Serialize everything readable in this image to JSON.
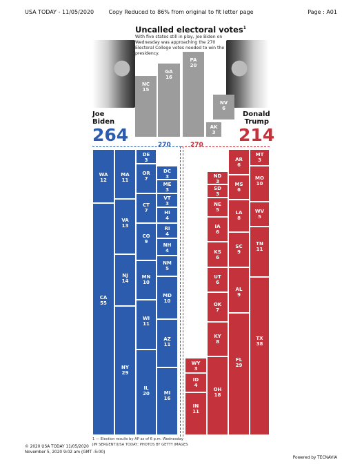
{
  "header": {
    "left": "USA TODAY - 11/05/2020",
    "center": "Copy Reduced to 86% from original to fit letter page",
    "right": "Page : A01"
  },
  "graphic": {
    "title": "Uncalled electoral votes",
    "title_sup": "1",
    "subtitle": "With five states still in play, Joe Biden on Wednesday was approaching the 270 Electoral College votes needed to win the presidency.",
    "uncalled": [
      {
        "abbr": "NC",
        "ev": "15"
      },
      {
        "abbr": "GA",
        "ev": "16"
      },
      {
        "abbr": "PA",
        "ev": "20"
      },
      {
        "abbr": "NV",
        "ev": "6"
      },
      {
        "abbr": "AK",
        "ev": "3"
      }
    ],
    "biden": {
      "first": "Joe",
      "last": "Biden",
      "votes": "264",
      "color": "#2b5cae",
      "photo_icon": "person-silhouette"
    },
    "trump": {
      "first": "Donald",
      "last": "Trump",
      "votes": "214",
      "color": "#c4323b",
      "photo_icon": "person-silhouette"
    },
    "threshold_left": "270",
    "threshold_right": "270",
    "biden_states": [
      {
        "abbr": "WA",
        "ev": "12"
      },
      {
        "abbr": "MA",
        "ev": "11"
      },
      {
        "abbr": "DE",
        "ev": "3"
      },
      {
        "abbr": "OR",
        "ev": "7"
      },
      {
        "abbr": "DC",
        "ev": "3"
      },
      {
        "abbr": "ME",
        "ev": "3"
      },
      {
        "abbr": "VT",
        "ev": "3"
      },
      {
        "abbr": "CT",
        "ev": "7"
      },
      {
        "abbr": "VA",
        "ev": "13"
      },
      {
        "abbr": "HI",
        "ev": "4"
      },
      {
        "abbr": "RI",
        "ev": "4"
      },
      {
        "abbr": "CO",
        "ev": "9"
      },
      {
        "abbr": "NH",
        "ev": "4"
      },
      {
        "abbr": "NM",
        "ev": "5"
      },
      {
        "abbr": "NJ",
        "ev": "14"
      },
      {
        "abbr": "MN",
        "ev": "10"
      },
      {
        "abbr": "CA",
        "ev": "55"
      },
      {
        "abbr": "MD",
        "ev": "10"
      },
      {
        "abbr": "WI",
        "ev": "11"
      },
      {
        "abbr": "AZ",
        "ev": "11"
      },
      {
        "abbr": "NY",
        "ev": "29"
      },
      {
        "abbr": "IL",
        "ev": "20"
      },
      {
        "abbr": "MI",
        "ev": "16"
      }
    ],
    "trump_states": [
      {
        "abbr": "MT",
        "ev": "3"
      },
      {
        "abbr": "AR",
        "ev": "6"
      },
      {
        "abbr": "ND",
        "ev": "3"
      },
      {
        "abbr": "MO",
        "ev": "10"
      },
      {
        "abbr": "SD",
        "ev": "3"
      },
      {
        "abbr": "MS",
        "ev": "6"
      },
      {
        "abbr": "NE",
        "ev": "5"
      },
      {
        "abbr": "WV",
        "ev": "5"
      },
      {
        "abbr": "LA",
        "ev": "8"
      },
      {
        "abbr": "IA",
        "ev": "6"
      },
      {
        "abbr": "TN",
        "ev": "11"
      },
      {
        "abbr": "SC",
        "ev": "9"
      },
      {
        "abbr": "KS",
        "ev": "6"
      },
      {
        "abbr": "UT",
        "ev": "6"
      },
      {
        "abbr": "AL",
        "ev": "9"
      },
      {
        "abbr": "OK",
        "ev": "7"
      },
      {
        "abbr": "KY",
        "ev": "8"
      },
      {
        "abbr": "TX",
        "ev": "38"
      },
      {
        "abbr": "WY",
        "ev": "3"
      },
      {
        "abbr": "FL",
        "ev": "29"
      },
      {
        "abbr": "ID",
        "ev": "4"
      },
      {
        "abbr": "OH",
        "ev": "18"
      },
      {
        "abbr": "IN",
        "ev": "11"
      }
    ],
    "footnote_1": "1 — Election results by AP as of 6 p.m. Wednesday",
    "footnote_2": "JIM SERGENT/USA TODAY; PHOTOS BY GETTY IMAGES"
  },
  "footer": {
    "copyright": "© 2020 USA TODAY 11/05/2020",
    "timestamp": "November 5, 2020 9:02 am (GMT -5:00)",
    "powered": "Powered by TECNAVIA"
  }
}
